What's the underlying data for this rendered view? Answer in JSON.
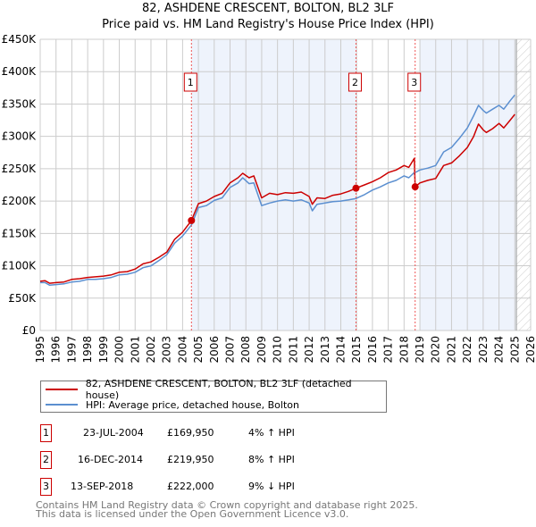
{
  "title": "82, ASHDENE CRESCENT, BOLTON, BL2 3LF",
  "subtitle": "Price paid vs. HM Land Registry's House Price Index (HPI)",
  "legend": {
    "property": "82, ASHDENE CRESCENT, BOLTON, BL2 3LF (detached house)",
    "hpi": "HPI: Average price, detached house, Bolton"
  },
  "sales": [
    {
      "num": "1",
      "date": "23-JUL-2004",
      "price": "£169,950",
      "hpi": "4% ↑ HPI",
      "year": 2004.56,
      "value": 169950
    },
    {
      "num": "2",
      "date": "16-DEC-2014",
      "price": "£219,950",
      "hpi": "8% ↑ HPI",
      "year": 2014.96,
      "value": 219950
    },
    {
      "num": "3",
      "date": "13-SEP-2018",
      "price": "£222,000",
      "hpi": "9% ↓ HPI",
      "year": 2018.7,
      "value": 222000
    }
  ],
  "footer": {
    "line1": "Contains HM Land Registry data © Crown copyright and database right 2025.",
    "line2": "This data is licensed under the Open Government Licence v3.0."
  },
  "colors": {
    "property": "#cc0000",
    "hpi": "#5b8fd0",
    "shade": "#eef3fc",
    "grid": "#cccccc"
  },
  "chart_data": {
    "type": "line",
    "xlim": [
      1995,
      2026
    ],
    "ylim": [
      0,
      450000
    ],
    "x_ticks": [
      "1995",
      "1996",
      "1997",
      "1998",
      "1999",
      "2000",
      "2001",
      "2002",
      "2003",
      "2004",
      "2005",
      "2006",
      "2007",
      "2008",
      "2009",
      "2010",
      "2011",
      "2012",
      "2013",
      "2014",
      "2015",
      "2016",
      "2017",
      "2018",
      "2019",
      "2020",
      "2021",
      "2022",
      "2023",
      "2024",
      "2025",
      "2026"
    ],
    "y_ticks": [
      {
        "value": 0,
        "label": "£0"
      },
      {
        "value": 50000,
        "label": "£50K"
      },
      {
        "value": 100000,
        "label": "£100K"
      },
      {
        "value": 150000,
        "label": "£150K"
      },
      {
        "value": 200000,
        "label": "£200K"
      },
      {
        "value": 250000,
        "label": "£250K"
      },
      {
        "value": 300000,
        "label": "£300K"
      },
      {
        "value": 350000,
        "label": "£350K"
      },
      {
        "value": 400000,
        "label": "£400K"
      },
      {
        "value": 450000,
        "label": "£450K"
      }
    ],
    "shaded_ranges": [
      [
        2004.56,
        2014.96
      ],
      [
        2019.0,
        2025.1
      ]
    ],
    "forecast_hatch_from": 2025.1,
    "series": [
      {
        "name": "82, ASHDENE CRESCENT, BOLTON, BL2 3LF (detached house)",
        "color": "#cc0000",
        "x": [
          1995,
          1995.3,
          1995.6,
          1996,
          1996.5,
          1997,
          1997.5,
          1998,
          1998.5,
          1999,
          1999.5,
          2000,
          2000.5,
          2001,
          2001.5,
          2002,
          2002.5,
          2003,
          2003.5,
          2004,
          2004.56,
          2005,
          2005.5,
          2006,
          2006.5,
          2007,
          2007.5,
          2007.8,
          2008.2,
          2008.5,
          2009,
          2009.5,
          2010,
          2010.5,
          2011,
          2011.5,
          2012,
          2012.2,
          2012.5,
          2013,
          2013.5,
          2014,
          2014.5,
          2014.96,
          2015.5,
          2016,
          2016.5,
          2017,
          2017.5,
          2018,
          2018.3,
          2018.65,
          2018.7,
          2019,
          2019.5,
          2020,
          2020.5,
          2021,
          2021.5,
          2022,
          2022.4,
          2022.7,
          2023,
          2023.2,
          2023.6,
          2024,
          2024.3,
          2024.7,
          2025
        ],
        "y": [
          76000,
          77000,
          73000,
          74000,
          75000,
          79000,
          80000,
          82000,
          83000,
          84000,
          86000,
          90000,
          91000,
          95000,
          103000,
          106000,
          113000,
          121000,
          141000,
          152000,
          169950,
          196000,
          200000,
          207000,
          212000,
          228000,
          236000,
          243000,
          236000,
          239000,
          205000,
          212000,
          210000,
          213000,
          212000,
          214000,
          207000,
          195000,
          205000,
          204000,
          209000,
          211000,
          215000,
          219950,
          225000,
          230000,
          236000,
          244000,
          248000,
          255000,
          252000,
          266000,
          222000,
          228000,
          232000,
          235000,
          255000,
          259000,
          270000,
          283000,
          300000,
          319000,
          310000,
          306000,
          312000,
          320000,
          313000,
          325000,
          334000
        ]
      },
      {
        "name": "HPI: Average price, detached house, Bolton",
        "color": "#5b8fd0",
        "x": [
          1995,
          1995.3,
          1995.6,
          1996,
          1996.5,
          1997,
          1997.5,
          1998,
          1998.5,
          1999,
          1999.5,
          2000,
          2000.5,
          2001,
          2001.5,
          2002,
          2002.5,
          2003,
          2003.5,
          2004,
          2004.56,
          2005,
          2005.5,
          2006,
          2006.5,
          2007,
          2007.5,
          2007.8,
          2008.2,
          2008.5,
          2009,
          2009.5,
          2010,
          2010.5,
          2011,
          2011.5,
          2012,
          2012.2,
          2012.5,
          2013,
          2013.5,
          2014,
          2014.5,
          2014.96,
          2015.5,
          2016,
          2016.5,
          2017,
          2017.5,
          2018,
          2018.3,
          2018.65,
          2018.7,
          2019,
          2019.5,
          2020,
          2020.5,
          2021,
          2021.5,
          2022,
          2022.4,
          2022.7,
          2023,
          2023.2,
          2023.6,
          2024,
          2024.3,
          2024.7,
          2025
        ],
        "y": [
          74000,
          74000,
          70000,
          71000,
          72000,
          75000,
          76000,
          79000,
          79000,
          80000,
          82000,
          86000,
          87000,
          90000,
          97000,
          100000,
          108000,
          117000,
          135000,
          146000,
          163000,
          190000,
          193000,
          201000,
          205000,
          221000,
          228000,
          236000,
          227000,
          228000,
          193000,
          197000,
          200000,
          202000,
          200000,
          202000,
          197000,
          185000,
          195000,
          197000,
          199000,
          200000,
          202000,
          204000,
          210000,
          217000,
          222000,
          228000,
          232000,
          239000,
          236000,
          244000,
          244000,
          248000,
          251000,
          255000,
          276000,
          283000,
          297000,
          313000,
          332000,
          348000,
          340000,
          336000,
          342000,
          348000,
          342000,
          355000,
          364000
        ]
      }
    ]
  }
}
